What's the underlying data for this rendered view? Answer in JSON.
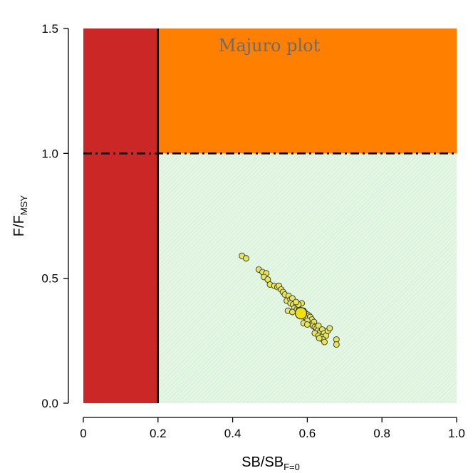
{
  "chart_data": {
    "type": "scatter",
    "title": "Majuro plot",
    "xlabel": {
      "main": "SB/SB",
      "sub": "F=0"
    },
    "ylabel": {
      "main": "F/F",
      "sub": "MSY"
    },
    "xlim": [
      0,
      1
    ],
    "ylim": [
      0,
      1.5
    ],
    "x_ticks": [
      "0",
      "0.2",
      "0.4",
      "0.6",
      "0.8",
      "1.0"
    ],
    "y_ticks": [
      "0.0",
      "0.5",
      "1.0",
      "1.5"
    ],
    "limit_reference_point": 0.2,
    "f_msy_line": 1.0,
    "regions": [
      {
        "name": "below-limit",
        "x": [
          0,
          0.2
        ],
        "y": [
          0,
          1.5
        ],
        "color": "#cc2727"
      },
      {
        "name": "overfishing",
        "x": [
          0.2,
          1.0
        ],
        "y": [
          1.0,
          1.5
        ],
        "color": "#ff8000"
      },
      {
        "name": "safe",
        "x": [
          0.2,
          1.0
        ],
        "y": [
          0,
          1.0
        ],
        "color": "#e4f6e4"
      }
    ],
    "point_color": "#e6e65a",
    "highlight_color": "#f2e200",
    "highlight_point": {
      "x": 0.583,
      "y": 0.36
    },
    "points": [
      {
        "x": 0.425,
        "y": 0.59
      },
      {
        "x": 0.436,
        "y": 0.58
      },
      {
        "x": 0.47,
        "y": 0.535
      },
      {
        "x": 0.48,
        "y": 0.525
      },
      {
        "x": 0.49,
        "y": 0.52
      },
      {
        "x": 0.484,
        "y": 0.505
      },
      {
        "x": 0.494,
        "y": 0.495
      },
      {
        "x": 0.5,
        "y": 0.475
      },
      {
        "x": 0.512,
        "y": 0.47
      },
      {
        "x": 0.52,
        "y": 0.465
      },
      {
        "x": 0.524,
        "y": 0.47
      },
      {
        "x": 0.53,
        "y": 0.455
      },
      {
        "x": 0.535,
        "y": 0.445
      },
      {
        "x": 0.54,
        "y": 0.435
      },
      {
        "x": 0.55,
        "y": 0.43
      },
      {
        "x": 0.545,
        "y": 0.41
      },
      {
        "x": 0.555,
        "y": 0.415
      },
      {
        "x": 0.56,
        "y": 0.42
      },
      {
        "x": 0.555,
        "y": 0.4
      },
      {
        "x": 0.562,
        "y": 0.395
      },
      {
        "x": 0.57,
        "y": 0.39
      },
      {
        "x": 0.575,
        "y": 0.385
      },
      {
        "x": 0.565,
        "y": 0.38
      },
      {
        "x": 0.572,
        "y": 0.375
      },
      {
        "x": 0.578,
        "y": 0.375
      },
      {
        "x": 0.548,
        "y": 0.37
      },
      {
        "x": 0.56,
        "y": 0.365
      },
      {
        "x": 0.59,
        "y": 0.37
      },
      {
        "x": 0.595,
        "y": 0.36
      },
      {
        "x": 0.6,
        "y": 0.355
      },
      {
        "x": 0.605,
        "y": 0.35
      },
      {
        "x": 0.593,
        "y": 0.345
      },
      {
        "x": 0.608,
        "y": 0.345
      },
      {
        "x": 0.612,
        "y": 0.335
      },
      {
        "x": 0.6,
        "y": 0.33
      },
      {
        "x": 0.618,
        "y": 0.325
      },
      {
        "x": 0.59,
        "y": 0.32
      },
      {
        "x": 0.6,
        "y": 0.315
      },
      {
        "x": 0.615,
        "y": 0.31
      },
      {
        "x": 0.62,
        "y": 0.305
      },
      {
        "x": 0.625,
        "y": 0.3
      },
      {
        "x": 0.63,
        "y": 0.31
      },
      {
        "x": 0.628,
        "y": 0.29
      },
      {
        "x": 0.635,
        "y": 0.285
      },
      {
        "x": 0.64,
        "y": 0.295
      },
      {
        "x": 0.645,
        "y": 0.28
      },
      {
        "x": 0.62,
        "y": 0.28
      },
      {
        "x": 0.63,
        "y": 0.27
      },
      {
        "x": 0.638,
        "y": 0.265
      },
      {
        "x": 0.65,
        "y": 0.27
      },
      {
        "x": 0.642,
        "y": 0.255
      },
      {
        "x": 0.632,
        "y": 0.26
      },
      {
        "x": 0.646,
        "y": 0.245
      },
      {
        "x": 0.655,
        "y": 0.29
      },
      {
        "x": 0.66,
        "y": 0.3
      },
      {
        "x": 0.678,
        "y": 0.255
      },
      {
        "x": 0.678,
        "y": 0.235
      },
      {
        "x": 0.585,
        "y": 0.4
      },
      {
        "x": 0.576,
        "y": 0.395
      },
      {
        "x": 0.57,
        "y": 0.405
      }
    ]
  }
}
